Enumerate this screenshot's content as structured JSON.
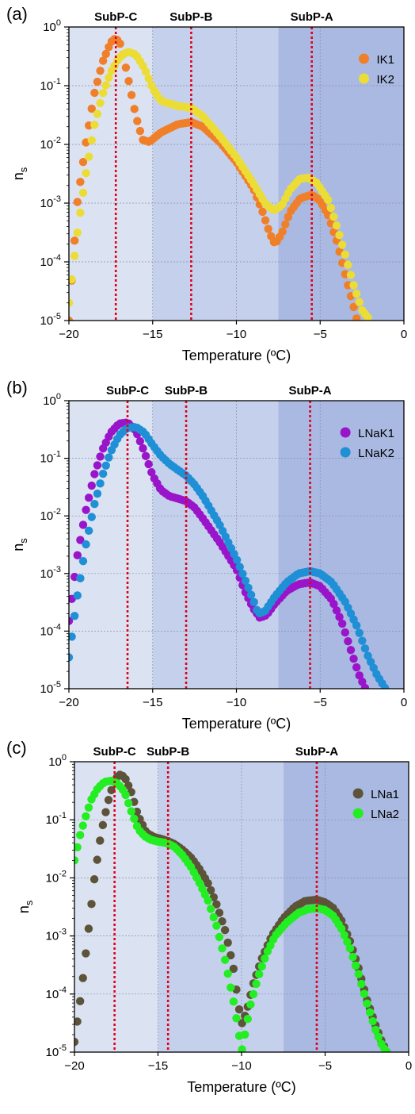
{
  "chart_data": [
    {
      "type": "scatter",
      "panel_label": "(a)",
      "xlabel": "Temperature (ºC)",
      "ylabel": "n",
      "ylabel_sub": "s",
      "xlim": [
        -20,
        0
      ],
      "ylim": [
        1e-05,
        1
      ],
      "y_scale": "log",
      "grid": true,
      "legend_position": "top-right",
      "x_ticks": [
        -20,
        -15,
        -10,
        -5,
        0
      ],
      "x_tick_labels": [
        "−20",
        "−15",
        "−10",
        "−5",
        "0"
      ],
      "y_tick_mantissa": "10",
      "y_tick_exponents": [
        "0",
        "-1",
        "-2",
        "-3",
        "-4",
        "-5"
      ],
      "regions": [
        {
          "x0": -20,
          "x1": -15,
          "color": "#dbe3f3"
        },
        {
          "x0": -15,
          "x1": -7.5,
          "color": "#c5d1ec"
        },
        {
          "x0": -7.5,
          "x1": 0,
          "color": "#a9b9e2"
        }
      ],
      "subpopulations": [
        {
          "label": "SubP-C",
          "x": -17.2
        },
        {
          "label": "SubP-B",
          "x": -12.7
        },
        {
          "label": "SubP-A",
          "x": -5.5
        }
      ],
      "series": [
        {
          "name": "IK1",
          "color": "#f07f2a",
          "draw_order": 0,
          "x_range": [
            -20,
            -2.8
          ],
          "points": [
            [
              -20,
              1e-05
            ],
            [
              -19.5,
              0.001
            ],
            [
              -19,
              0.01
            ],
            [
              -18.5,
              0.07
            ],
            [
              -18,
              0.25
            ],
            [
              -17.5,
              0.55
            ],
            [
              -17.2,
              0.65
            ],
            [
              -16.9,
              0.5
            ],
            [
              -16.5,
              0.15
            ],
            [
              -16,
              0.03
            ],
            [
              -15.6,
              0.012
            ],
            [
              -15.2,
              0.011
            ],
            [
              -14.5,
              0.016
            ],
            [
              -13.5,
              0.022
            ],
            [
              -12.7,
              0.024
            ],
            [
              -12,
              0.02
            ],
            [
              -11,
              0.011
            ],
            [
              -10,
              0.005
            ],
            [
              -9,
              0.0018
            ],
            [
              -8.5,
              0.0008
            ],
            [
              -8,
              0.0003
            ],
            [
              -7.7,
              0.0002
            ],
            [
              -7.3,
              0.0003
            ],
            [
              -6.8,
              0.0007
            ],
            [
              -6.2,
              0.0012
            ],
            [
              -5.5,
              0.0014
            ],
            [
              -5,
              0.0011
            ],
            [
              -4.5,
              0.0006
            ],
            [
              -4,
              0.00022
            ],
            [
              -3.5,
              6e-05
            ],
            [
              -3,
              1.7e-05
            ],
            [
              -2.8,
              1e-05
            ]
          ]
        },
        {
          "name": "IK2",
          "color": "#ebdd36",
          "draw_order": 1,
          "x_range": [
            -20,
            -2
          ],
          "points": [
            [
              -20,
              2e-05
            ],
            [
              -19.5,
              0.0003
            ],
            [
              -19,
              0.003
            ],
            [
              -18.5,
              0.02
            ],
            [
              -18,
              0.07
            ],
            [
              -17.5,
              0.17
            ],
            [
              -17,
              0.3
            ],
            [
              -16.5,
              0.38
            ],
            [
              -16,
              0.34
            ],
            [
              -15.5,
              0.2
            ],
            [
              -15,
              0.09
            ],
            [
              -14.5,
              0.055
            ],
            [
              -13.5,
              0.045
            ],
            [
              -12.7,
              0.042
            ],
            [
              -12,
              0.03
            ],
            [
              -11,
              0.014
            ],
            [
              -10,
              0.006
            ],
            [
              -9,
              0.0022
            ],
            [
              -8.3,
              0.001
            ],
            [
              -7.8,
              0.00075
            ],
            [
              -7.3,
              0.0009
            ],
            [
              -6.8,
              0.0017
            ],
            [
              -6.2,
              0.0026
            ],
            [
              -5.7,
              0.0027
            ],
            [
              -5.2,
              0.0022
            ],
            [
              -4.5,
              0.0011
            ],
            [
              -4,
              0.0004
            ],
            [
              -3.5,
              0.00013
            ],
            [
              -3,
              4e-05
            ],
            [
              -2.5,
              1.5e-05
            ],
            [
              -2,
              1e-05
            ]
          ]
        }
      ]
    },
    {
      "type": "scatter",
      "panel_label": "(b)",
      "xlabel": "Temperature (ºC)",
      "ylabel": "n",
      "ylabel_sub": "s",
      "xlim": [
        -20,
        0
      ],
      "ylim": [
        1e-05,
        1
      ],
      "y_scale": "log",
      "grid": true,
      "legend_position": "top-right",
      "x_ticks": [
        -20,
        -15,
        -10,
        -5,
        0
      ],
      "x_tick_labels": [
        "−20",
        "−15",
        "−10",
        "−5",
        "0"
      ],
      "y_tick_mantissa": "10",
      "y_tick_exponents": [
        "0",
        "-1",
        "-2",
        "-3",
        "-4",
        "-5"
      ],
      "regions": [
        {
          "x0": -20,
          "x1": -15,
          "color": "#dbe3f3"
        },
        {
          "x0": -15,
          "x1": -7.5,
          "color": "#c5d1ec"
        },
        {
          "x0": -7.5,
          "x1": 0,
          "color": "#a9b9e2"
        }
      ],
      "subpopulations": [
        {
          "label": "SubP-C",
          "x": -16.5
        },
        {
          "label": "SubP-B",
          "x": -13
        },
        {
          "label": "SubP-A",
          "x": -5.6
        }
      ],
      "series": [
        {
          "name": "LNaK1",
          "color": "#9a14c9",
          "draw_order": 0,
          "x_range": [
            -20,
            -2.3
          ],
          "points": [
            [
              -20,
              0.00015
            ],
            [
              -19.5,
              0.002
            ],
            [
              -19,
              0.012
            ],
            [
              -18.5,
              0.05
            ],
            [
              -18,
              0.14
            ],
            [
              -17.5,
              0.28
            ],
            [
              -17,
              0.4
            ],
            [
              -16.5,
              0.42
            ],
            [
              -16,
              0.3
            ],
            [
              -15.5,
              0.13
            ],
            [
              -15,
              0.05
            ],
            [
              -14.5,
              0.028
            ],
            [
              -14,
              0.022
            ],
            [
              -13.5,
              0.02
            ],
            [
              -13,
              0.018
            ],
            [
              -12.5,
              0.014
            ],
            [
              -12,
              0.009
            ],
            [
              -11,
              0.0035
            ],
            [
              -10,
              0.0012
            ],
            [
              -9.5,
              0.0005
            ],
            [
              -9,
              0.00025
            ],
            [
              -8.6,
              0.00017
            ],
            [
              -8.2,
              0.00019
            ],
            [
              -7.7,
              0.0003
            ],
            [
              -7,
              0.0005
            ],
            [
              -6.3,
              0.00065
            ],
            [
              -5.6,
              0.0007
            ],
            [
              -5,
              0.0006
            ],
            [
              -4.3,
              0.00035
            ],
            [
              -3.7,
              0.00014
            ],
            [
              -3.2,
              5e-05
            ],
            [
              -2.7,
              1.8e-05
            ],
            [
              -2.3,
              1e-05
            ]
          ]
        },
        {
          "name": "LNaK2",
          "color": "#1f8fd6",
          "draw_order": 1,
          "x_range": [
            -20,
            -1.1
          ],
          "points": [
            [
              -20,
              3.5e-05
            ],
            [
              -19.5,
              0.0004
            ],
            [
              -19,
              0.003
            ],
            [
              -18.5,
              0.015
            ],
            [
              -18,
              0.05
            ],
            [
              -17.5,
              0.13
            ],
            [
              -17,
              0.25
            ],
            [
              -16.5,
              0.34
            ],
            [
              -16,
              0.35
            ],
            [
              -15.5,
              0.28
            ],
            [
              -15,
              0.17
            ],
            [
              -14.5,
              0.11
            ],
            [
              -14,
              0.08
            ],
            [
              -13.5,
              0.063
            ],
            [
              -13,
              0.05
            ],
            [
              -12.5,
              0.035
            ],
            [
              -12,
              0.022
            ],
            [
              -11,
              0.007
            ],
            [
              -10,
              0.0018
            ],
            [
              -9.5,
              0.0008
            ],
            [
              -9,
              0.00035
            ],
            [
              -8.7,
              0.0002
            ],
            [
              -8.3,
              0.00022
            ],
            [
              -7.7,
              0.0004
            ],
            [
              -7,
              0.0007
            ],
            [
              -6.3,
              0.001
            ],
            [
              -5.6,
              0.0011
            ],
            [
              -5,
              0.001
            ],
            [
              -4.3,
              0.0007
            ],
            [
              -3.5,
              0.00032
            ],
            [
              -2.8,
              0.00012
            ],
            [
              -2.2,
              4e-05
            ],
            [
              -1.6,
              1.7e-05
            ],
            [
              -1.1,
              1e-05
            ]
          ]
        }
      ]
    },
    {
      "type": "scatter",
      "panel_label": "(c)",
      "xlabel": "Temperature (ºC)",
      "ylabel": "n",
      "ylabel_sub": "s",
      "xlim": [
        -20,
        0
      ],
      "ylim": [
        1e-05,
        1
      ],
      "y_scale": "log",
      "grid": true,
      "legend_position": "top-right",
      "x_ticks": [
        -20,
        -15,
        -10,
        -5,
        0
      ],
      "x_tick_labels": [
        "−20",
        "−15",
        "−10",
        "−5",
        "0"
      ],
      "y_tick_mantissa": "10",
      "y_tick_exponents": [
        "0",
        "-1",
        "-2",
        "-3",
        "-4",
        "-5"
      ],
      "regions": [
        {
          "x0": -20,
          "x1": -15,
          "color": "#dbe3f3"
        },
        {
          "x0": -15,
          "x1": -7.5,
          "color": "#c5d1ec"
        },
        {
          "x0": -7.5,
          "x1": 0,
          "color": "#a9b9e2"
        }
      ],
      "subpopulations": [
        {
          "label": "SubP-C",
          "x": -17.6
        },
        {
          "label": "SubP-B",
          "x": -14.4
        },
        {
          "label": "SubP-A",
          "x": -5.5
        }
      ],
      "series": [
        {
          "name": "LNa1",
          "color": "#5c5339",
          "draw_order": 0,
          "x_range": [
            -20,
            -1.3
          ],
          "points": [
            [
              -20,
              1.5e-05
            ],
            [
              -19.6,
              0.0001
            ],
            [
              -19.2,
              0.001
            ],
            [
              -18.8,
              0.01
            ],
            [
              -18.4,
              0.06
            ],
            [
              -18,
              0.2
            ],
            [
              -17.6,
              0.5
            ],
            [
              -17.3,
              0.6
            ],
            [
              -17,
              0.55
            ],
            [
              -16.6,
              0.3
            ],
            [
              -16.2,
              0.12
            ],
            [
              -15.7,
              0.06
            ],
            [
              -15.2,
              0.05
            ],
            [
              -14.8,
              0.047
            ],
            [
              -14.4,
              0.043
            ],
            [
              -14,
              0.038
            ],
            [
              -13.5,
              0.03
            ],
            [
              -13,
              0.022
            ],
            [
              -12.5,
              0.014
            ],
            [
              -12,
              0.008
            ],
            [
              -11.5,
              0.0035
            ],
            [
              -11,
              0.0013
            ],
            [
              -10.5,
              0.0003
            ],
            [
              -10.2,
              7e-05
            ],
            [
              -10,
              3e-05
            ],
            [
              -9.7,
              5e-05
            ],
            [
              -9.3,
              0.00015
            ],
            [
              -8.8,
              0.0004
            ],
            [
              -8.2,
              0.001
            ],
            [
              -7.5,
              0.002
            ],
            [
              -6.8,
              0.0032
            ],
            [
              -6.2,
              0.004
            ],
            [
              -5.5,
              0.0042
            ],
            [
              -5,
              0.0038
            ],
            [
              -4.5,
              0.003
            ],
            [
              -4,
              0.0018
            ],
            [
              -3.5,
              0.0008
            ],
            [
              -3,
              0.00028
            ],
            [
              -2.5,
              8e-05
            ],
            [
              -2,
              3e-05
            ],
            [
              -1.6,
              1.5e-05
            ],
            [
              -1.3,
              1e-05
            ]
          ]
        },
        {
          "name": "LNa2",
          "color": "#22ee22",
          "draw_order": 1,
          "x_range": [
            -20,
            -1.3
          ],
          "points": [
            [
              -20,
              0.02
            ],
            [
              -19.7,
              0.05
            ],
            [
              -19.3,
              0.12
            ],
            [
              -19,
              0.22
            ],
            [
              -18.6,
              0.35
            ],
            [
              -18.2,
              0.45
            ],
            [
              -17.8,
              0.47
            ],
            [
              -17.4,
              0.42
            ],
            [
              -17,
              0.3
            ],
            [
              -16.6,
              0.14
            ],
            [
              -16.2,
              0.07
            ],
            [
              -15.8,
              0.052
            ],
            [
              -15.4,
              0.045
            ],
            [
              -15,
              0.042
            ],
            [
              -14.5,
              0.04
            ],
            [
              -14,
              0.034
            ],
            [
              -13.5,
              0.024
            ],
            [
              -13,
              0.015
            ],
            [
              -12.5,
              0.008
            ],
            [
              -12,
              0.004
            ],
            [
              -11.5,
              0.0015
            ],
            [
              -11,
              0.0004
            ],
            [
              -10.5,
              8e-05
            ],
            [
              -10.2,
              2.5e-05
            ],
            [
              -10,
              1e-05
            ],
            [
              -9.8,
              2e-05
            ],
            [
              -9.5,
              6e-05
            ],
            [
              -9,
              0.0002
            ],
            [
              -8.5,
              0.0005
            ],
            [
              -8,
              0.001
            ],
            [
              -7.3,
              0.0017
            ],
            [
              -6.6,
              0.0025
            ],
            [
              -6,
              0.0029
            ],
            [
              -5.5,
              0.003
            ],
            [
              -5,
              0.0028
            ],
            [
              -4.5,
              0.0022
            ],
            [
              -4,
              0.0013
            ],
            [
              -3.5,
              0.0006
            ],
            [
              -3,
              0.00022
            ],
            [
              -2.5,
              7e-05
            ],
            [
              -2,
              2.5e-05
            ],
            [
              -1.6,
              1.3e-05
            ],
            [
              -1.3,
              1e-05
            ]
          ]
        }
      ]
    }
  ]
}
